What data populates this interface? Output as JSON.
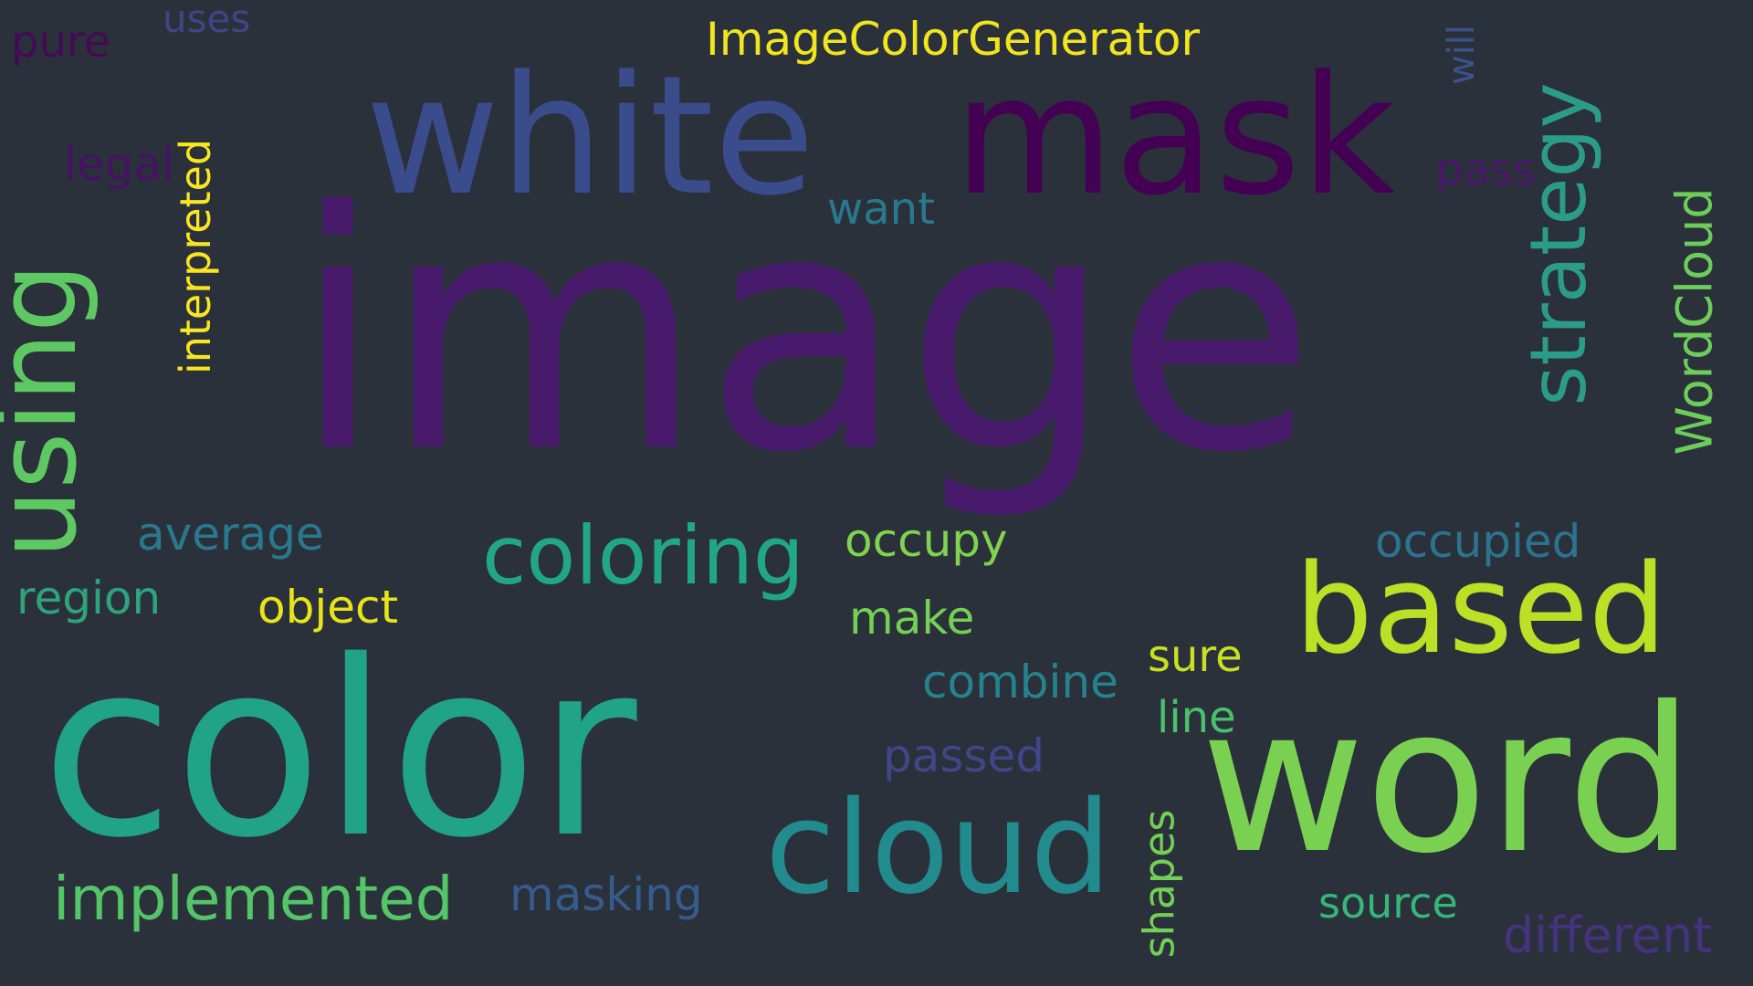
{
  "background_color": "#2b313b",
  "words": [
    {
      "text": "image",
      "color": "#481a6c"
    },
    {
      "text": "color",
      "color": "#20a386"
    },
    {
      "text": "mask",
      "color": "#440154"
    },
    {
      "text": "white",
      "color": "#3a4c8b"
    },
    {
      "text": "word",
      "color": "#7ad151"
    },
    {
      "text": "based",
      "color": "#bddf26"
    },
    {
      "text": "cloud",
      "color": "#228b8d"
    },
    {
      "text": "using",
      "color": "#5ec962"
    },
    {
      "text": "coloring",
      "color": "#22a785"
    },
    {
      "text": "strategy",
      "color": "#2a9c88"
    },
    {
      "text": "ImageColorGenerator",
      "color": "#f1e51d"
    },
    {
      "text": "implemented",
      "color": "#54c568"
    },
    {
      "text": "WordCloud",
      "color": "#6ccd5a"
    },
    {
      "text": "interpreted",
      "color": "#f8e621"
    },
    {
      "text": "occupied",
      "color": "#2c738e"
    },
    {
      "text": "average",
      "color": "#2a788e"
    },
    {
      "text": "combine",
      "color": "#25838e"
    },
    {
      "text": "occupy",
      "color": "#7fd34e"
    },
    {
      "text": "region",
      "color": "#2ea37c"
    },
    {
      "text": "object",
      "color": "#e7e419"
    },
    {
      "text": "make",
      "color": "#74d055"
    },
    {
      "text": "masking",
      "color": "#365c8d"
    },
    {
      "text": "passed",
      "color": "#404688"
    },
    {
      "text": "shapes",
      "color": "#73d056"
    },
    {
      "text": "source",
      "color": "#35b779"
    },
    {
      "text": "different",
      "color": "#46337e"
    },
    {
      "text": "sure",
      "color": "#c8e020"
    },
    {
      "text": "line",
      "color": "#4ac16d"
    },
    {
      "text": "legal",
      "color": "#471164"
    },
    {
      "text": "pass",
      "color": "#481769"
    },
    {
      "text": "want",
      "color": "#2a788e"
    },
    {
      "text": "pure",
      "color": "#440a55"
    },
    {
      "text": "uses",
      "color": "#414487"
    },
    {
      "text": "will",
      "color": "#3b528b"
    },
    {
      "text": "i",
      "color": "#481c6e"
    }
  ]
}
